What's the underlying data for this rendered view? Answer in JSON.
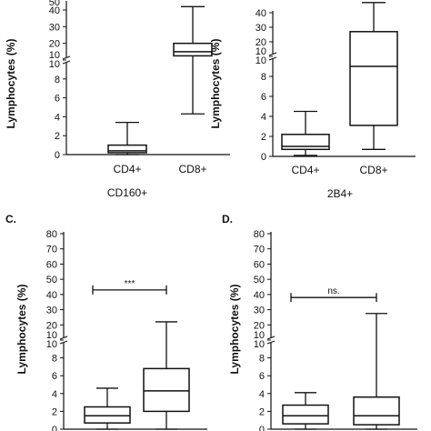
{
  "chart_data": [
    {
      "type": "box",
      "panel_label": "",
      "ylabel": "Lymphocytes (%)",
      "xlabel": "CD160+",
      "axis": {
        "lower_ticks": [
          "0",
          "2",
          "4",
          "6",
          "8",
          "10"
        ],
        "upper_ticks": [
          "10",
          "20",
          "30",
          "40"
        ],
        "top_partial_tick": "50",
        "lower_range": [
          0,
          10
        ],
        "upper_range": [
          10,
          50
        ],
        "break": true
      },
      "categories": [
        "CD4+",
        "CD8+"
      ],
      "boxes": [
        {
          "category": "CD4+",
          "min": 0.0,
          "q1": 0.2,
          "median": 0.4,
          "q3": 1.0,
          "max": 3.4
        },
        {
          "category": "CD8+",
          "min": 4.3,
          "q1": 12.5,
          "median": 15.0,
          "q3": 20.0,
          "max": 42.0
        }
      ],
      "significance": null
    },
    {
      "type": "box",
      "panel_label": "",
      "ylabel": "Lymphocytes (%)",
      "xlabel": "2B4+",
      "axis": {
        "lower_ticks": [
          "0",
          "2",
          "4",
          "6",
          "8",
          "10"
        ],
        "upper_ticks": [
          "10",
          "20",
          "30",
          "40"
        ],
        "top_partial_tick": "",
        "lower_range": [
          0,
          10
        ],
        "upper_range": [
          10,
          50
        ],
        "break": true
      },
      "categories": [
        "CD4+",
        "CD8+"
      ],
      "boxes": [
        {
          "category": "CD4+",
          "min": 0.1,
          "q1": 0.7,
          "median": 1.0,
          "q3": 2.2,
          "max": 4.5
        },
        {
          "category": "CD8+",
          "min": 0.7,
          "q1": 3.1,
          "median": 9.0,
          "q3": 27.0,
          "max": 47.0
        }
      ],
      "significance": null
    },
    {
      "type": "box",
      "panel_label": "C.",
      "ylabel": "Lymphocytes (%)",
      "xlabel": "",
      "axis": {
        "lower_ticks": [
          "0",
          "2",
          "4",
          "6",
          "8",
          "10"
        ],
        "upper_ticks": [
          "10",
          "20",
          "30",
          "40",
          "50",
          "60",
          "70",
          "80"
        ],
        "top_partial_tick": "",
        "lower_range": [
          0,
          10
        ],
        "upper_range": [
          10,
          80
        ],
        "break": true
      },
      "categories": [
        "",
        ""
      ],
      "boxes": [
        {
          "category": "",
          "min": 0.0,
          "q1": 0.7,
          "median": 1.5,
          "q3": 2.5,
          "max": 4.6
        },
        {
          "category": "",
          "min": 0.0,
          "q1": 2.0,
          "median": 4.3,
          "q3": 6.8,
          "max": 22.0
        }
      ],
      "significance": {
        "text": "***",
        "level": 43
      }
    },
    {
      "type": "box",
      "panel_label": "D.",
      "ylabel": "Lymphocytes (%)",
      "xlabel": "",
      "axis": {
        "lower_ticks": [
          "0",
          "2",
          "4",
          "6",
          "8",
          "10"
        ],
        "upper_ticks": [
          "10",
          "20",
          "30",
          "40",
          "50",
          "60",
          "70",
          "80"
        ],
        "top_partial_tick": "",
        "lower_range": [
          0,
          10
        ],
        "upper_range": [
          10,
          80
        ],
        "break": true
      },
      "categories": [
        "",
        ""
      ],
      "boxes": [
        {
          "category": "",
          "min": 0.0,
          "q1": 0.6,
          "median": 1.5,
          "q3": 2.7,
          "max": 4.1
        },
        {
          "category": "",
          "min": 0.0,
          "q1": 0.5,
          "median": 1.5,
          "q3": 3.6,
          "max": 27.5
        }
      ],
      "significance": {
        "text": "ns.",
        "level": 38
      }
    }
  ]
}
